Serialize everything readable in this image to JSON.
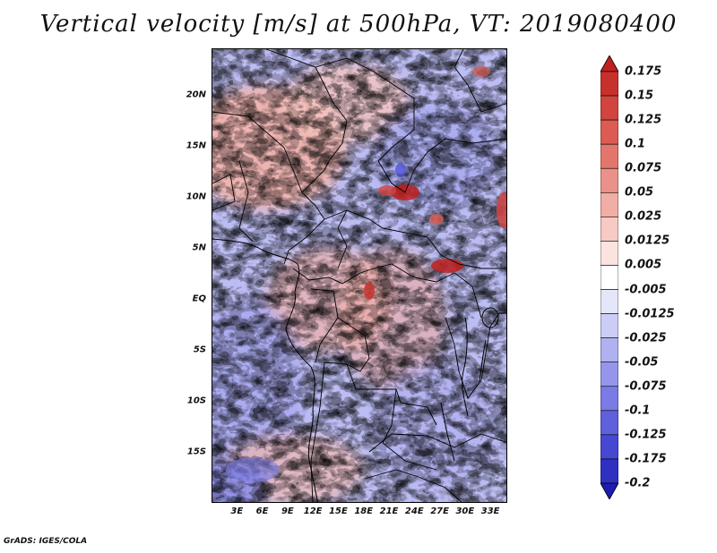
{
  "title": "Vertical velocity [m/s] at 500hPa, VT: 2019080400",
  "footer": "GrADS: IGES/COLA",
  "map": {
    "lat_labels": [
      "20N",
      "15N",
      "10N",
      "5N",
      "EQ",
      "5S",
      "10S",
      "15S"
    ],
    "lat_values": [
      20,
      15,
      10,
      5,
      0,
      -5,
      -10,
      -15
    ],
    "lon_labels": [
      "3E",
      "6E",
      "9E",
      "12E",
      "15E",
      "18E",
      "21E",
      "24E",
      "27E",
      "30E",
      "33E"
    ],
    "lon_values": [
      3,
      6,
      9,
      12,
      15,
      18,
      21,
      24,
      27,
      30,
      33
    ],
    "lat_range": [
      -20,
      24.6
    ],
    "lon_range": [
      0,
      35
    ]
  },
  "colorbar": {
    "labels": [
      "0.175",
      "0.15",
      "0.125",
      "0.1",
      "0.075",
      "0.05",
      "0.025",
      "0.0125",
      "0.005",
      "-0.005",
      "-0.0125",
      "-0.025",
      "-0.05",
      "-0.075",
      "-0.1",
      "-0.125",
      "-0.175",
      "-0.2"
    ],
    "colors": [
      "#c0201e",
      "#c8302c",
      "#d2443e",
      "#dc5c54",
      "#e3766c",
      "#ea9289",
      "#f1aea6",
      "#f7cac4",
      "#fbe4e0",
      "#ffffff",
      "#e6e6fa",
      "#cccdf6",
      "#b0b1f0",
      "#9596eb",
      "#7a7be4",
      "#5f60dc",
      "#4748d2",
      "#2f30c2",
      "#1c1cb0"
    ]
  }
}
